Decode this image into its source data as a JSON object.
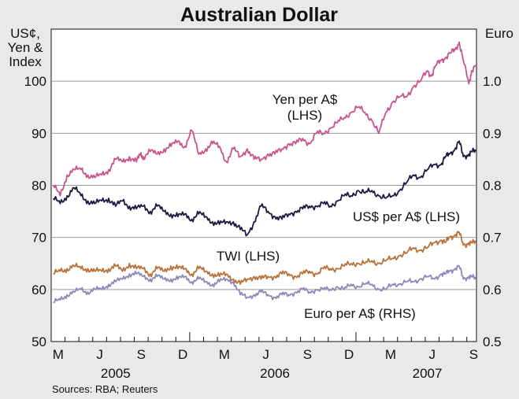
{
  "chart_data": {
    "type": "line",
    "title": "Australian Dollar",
    "left_axis_label": [
      "US¢,",
      "Yen &",
      "Index"
    ],
    "right_axis_label": "Euro",
    "left_ylim": [
      50,
      110
    ],
    "right_ylim": [
      0.5,
      1.1
    ],
    "left_ticks": [
      "100",
      "90",
      "80",
      "70",
      "60",
      "50"
    ],
    "right_ticks": [
      "1.0",
      "0.9",
      "0.8",
      "0.7",
      "0.6",
      "0.5"
    ],
    "x_range": [
      "2005-03",
      "2007-09"
    ],
    "month_labels": [
      "M",
      "J",
      "S",
      "D",
      "M",
      "J",
      "S",
      "D",
      "M",
      "J",
      "S"
    ],
    "year_labels": [
      "2005",
      "2006",
      "2007"
    ],
    "source": "Sources: RBA; Reuters",
    "series": [
      {
        "name": "Yen per A$",
        "label_lines": [
          "Yen per A$",
          "(LHS)"
        ],
        "axis": "left",
        "color": "#c9548c",
        "x": [
          0,
          0.5,
          1,
          1.5,
          2,
          2.5,
          3,
          3.5,
          4,
          4.5,
          5,
          5.5,
          6,
          6.3,
          6.5,
          7,
          7.5,
          8,
          8.5,
          9,
          9.5,
          10,
          10.5,
          11,
          11.5,
          12,
          12.5,
          13,
          13.5,
          14,
          14.5,
          15,
          15.5,
          16,
          16.5,
          17,
          17.5,
          18,
          18.5,
          19,
          19.5,
          20,
          20.5,
          21,
          21.5,
          22,
          22.5,
          23,
          23.5,
          24,
          24.5,
          25,
          25.5,
          26,
          26.5,
          27,
          27.3,
          27.6,
          28,
          28.3,
          28.7,
          29,
          29.3,
          29.6,
          30,
          30.2,
          30.5
        ],
        "values": [
          80,
          78,
          82,
          83,
          83,
          82,
          81.5,
          82,
          83,
          85,
          84.5,
          85.5,
          84.5,
          86,
          85.5,
          86.5,
          86,
          87,
          87.5,
          88.5,
          87.5,
          90.5,
          86,
          87,
          88,
          87.5,
          84.5,
          87,
          85.5,
          87,
          85,
          85,
          86,
          86,
          87,
          88,
          88,
          89,
          88,
          90,
          90,
          91,
          92,
          93,
          94,
          95,
          94,
          92.5,
          90,
          94,
          96,
          97,
          97,
          99,
          100,
          102,
          101,
          103,
          104,
          104.5,
          105.5,
          106,
          107.5,
          104,
          99.5,
          102,
          103
        ]
      },
      {
        "name": "US$ per A$",
        "label": "US$ per A$ (LHS)",
        "axis": "left",
        "color": "#1d1a40",
        "x": [
          0,
          0.5,
          1,
          1.5,
          2,
          2.5,
          3,
          3.5,
          4,
          4.5,
          5,
          5.5,
          6,
          6.5,
          7,
          7.5,
          8,
          8.5,
          9,
          9.5,
          10,
          10.5,
          11,
          11.5,
          12,
          12.5,
          13,
          13.5,
          14,
          14.5,
          15,
          15.5,
          16,
          16.5,
          17,
          17.5,
          18,
          18.5,
          19,
          19.5,
          20,
          20.5,
          21,
          21.5,
          22,
          22.5,
          23,
          23.5,
          24,
          24.5,
          25,
          25.5,
          26,
          26.5,
          27,
          27.5,
          28,
          28.3,
          28.6,
          29,
          29.3,
          29.6,
          30,
          30.2,
          30.5
        ],
        "values": [
          77.5,
          76.5,
          78,
          79.5,
          78,
          77,
          76.5,
          77,
          77.5,
          76,
          77,
          76,
          75.5,
          76,
          75,
          76,
          75,
          74.5,
          74,
          74.5,
          73.5,
          74.5,
          74,
          73,
          72.5,
          73,
          73,
          71.5,
          70.5,
          73,
          76,
          75,
          74,
          73.5,
          74.5,
          75,
          75.5,
          76,
          76,
          76.5,
          76,
          77,
          78,
          78,
          79,
          78.5,
          79,
          78,
          77.5,
          78,
          79,
          80.5,
          82,
          81.5,
          83,
          84,
          84,
          85.5,
          86,
          87,
          88.5,
          85.5,
          86,
          86.5,
          86.5
        ]
      },
      {
        "name": "TWI",
        "label": "TWI (LHS)",
        "axis": "left",
        "color": "#b8723a",
        "x": [
          0,
          0.5,
          1,
          1.5,
          2,
          2.5,
          3,
          3.5,
          4,
          4.5,
          5,
          5.5,
          6,
          6.5,
          7,
          7.5,
          8,
          8.5,
          9,
          9.5,
          10,
          10.5,
          11,
          11.5,
          12,
          12.5,
          13,
          13.5,
          14,
          14.5,
          15,
          15.5,
          16,
          16.5,
          17,
          17.5,
          18,
          18.5,
          19,
          19.5,
          20,
          20.5,
          21,
          21.5,
          22,
          22.5,
          23,
          23.5,
          24,
          24.5,
          25,
          25.5,
          26,
          26.5,
          27,
          27.5,
          28,
          28.3,
          28.6,
          29,
          29.3,
          29.6,
          30,
          30.2,
          30.5
        ],
        "values": [
          63,
          63.5,
          64,
          64.5,
          64,
          64,
          63.5,
          63.5,
          64,
          64.5,
          63.5,
          65,
          64,
          64,
          63,
          64,
          63.5,
          64.5,
          64,
          64,
          63,
          64,
          63.5,
          63,
          62.5,
          63,
          62,
          61,
          62,
          62.5,
          62,
          62.5,
          62.5,
          63,
          63,
          62.5,
          63,
          63.5,
          63,
          64,
          64,
          64,
          64.5,
          65,
          65,
          65,
          65.5,
          65,
          65.5,
          66,
          66.5,
          67,
          68,
          67.5,
          68,
          69,
          69.5,
          69,
          70,
          70.5,
          71,
          68.5,
          69,
          69,
          69
        ]
      },
      {
        "name": "Euro per A$",
        "label": "Euro per A$ (RHS)",
        "axis": "right",
        "color": "#8a8ab8",
        "x": [
          0,
          0.5,
          1,
          1.5,
          2,
          2.5,
          3,
          3.5,
          4,
          4.5,
          5,
          5.5,
          6,
          6.5,
          7,
          7.5,
          8,
          8.5,
          9,
          9.5,
          10,
          10.5,
          11,
          11.5,
          12,
          12.5,
          13,
          13.5,
          14,
          14.5,
          15,
          15.5,
          16,
          16.5,
          17,
          17.5,
          18,
          18.5,
          19,
          19.5,
          20,
          20.5,
          21,
          21.5,
          22,
          22.5,
          23,
          23.5,
          24,
          24.5,
          25,
          25.5,
          26,
          26.5,
          27,
          27.5,
          28,
          28.3,
          28.6,
          29,
          29.3,
          29.6,
          30,
          30.2,
          30.5
        ],
        "values": [
          0.575,
          0.58,
          0.59,
          0.595,
          0.6,
          0.595,
          0.6,
          0.6,
          0.61,
          0.615,
          0.62,
          0.63,
          0.63,
          0.625,
          0.62,
          0.625,
          0.62,
          0.62,
          0.62,
          0.625,
          0.615,
          0.62,
          0.615,
          0.61,
          0.615,
          0.62,
          0.615,
          0.59,
          0.585,
          0.59,
          0.595,
          0.59,
          0.585,
          0.59,
          0.59,
          0.595,
          0.6,
          0.595,
          0.6,
          0.6,
          0.6,
          0.605,
          0.6,
          0.61,
          0.605,
          0.61,
          0.61,
          0.6,
          0.6,
          0.61,
          0.61,
          0.615,
          0.615,
          0.62,
          0.625,
          0.62,
          0.63,
          0.63,
          0.635,
          0.64,
          0.645,
          0.62,
          0.625,
          0.625,
          0.62
        ]
      }
    ]
  }
}
